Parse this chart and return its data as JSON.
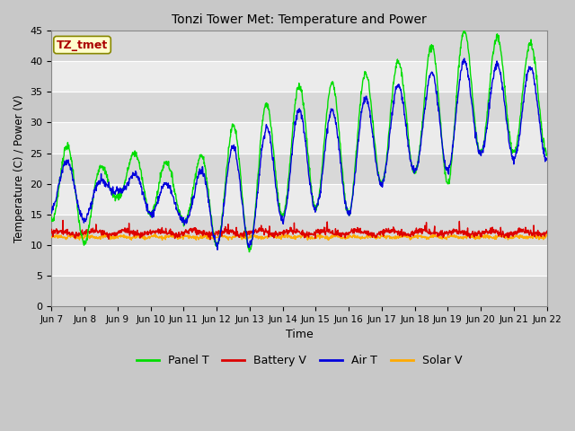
{
  "title": "Tonzi Tower Met: Temperature and Power",
  "xlabel": "Time",
  "ylabel": "Temperature (C) / Power (V)",
  "annotation": "TZ_tmet",
  "ylim": [
    0,
    45
  ],
  "yticks": [
    0,
    5,
    10,
    15,
    20,
    25,
    30,
    35,
    40,
    45
  ],
  "x_labels": [
    "Jun 7",
    "Jun 8",
    "Jun 9",
    "Jun 10",
    "Jun 11",
    "Jun 12",
    "Jun 13",
    "Jun 14",
    "Jun 15",
    "Jun 16",
    "Jun 17",
    "Jun 18",
    "Jun 19",
    "Jun 20",
    "Jun 21",
    "Jun 22"
  ],
  "colors": {
    "Panel T": "#00dd00",
    "Battery V": "#dd0000",
    "Air T": "#0000dd",
    "Solar V": "#ffaa00"
  },
  "light_band": "#ebebeb",
  "dark_band": "#d8d8d8",
  "fig_bg": "#c8c8c8"
}
